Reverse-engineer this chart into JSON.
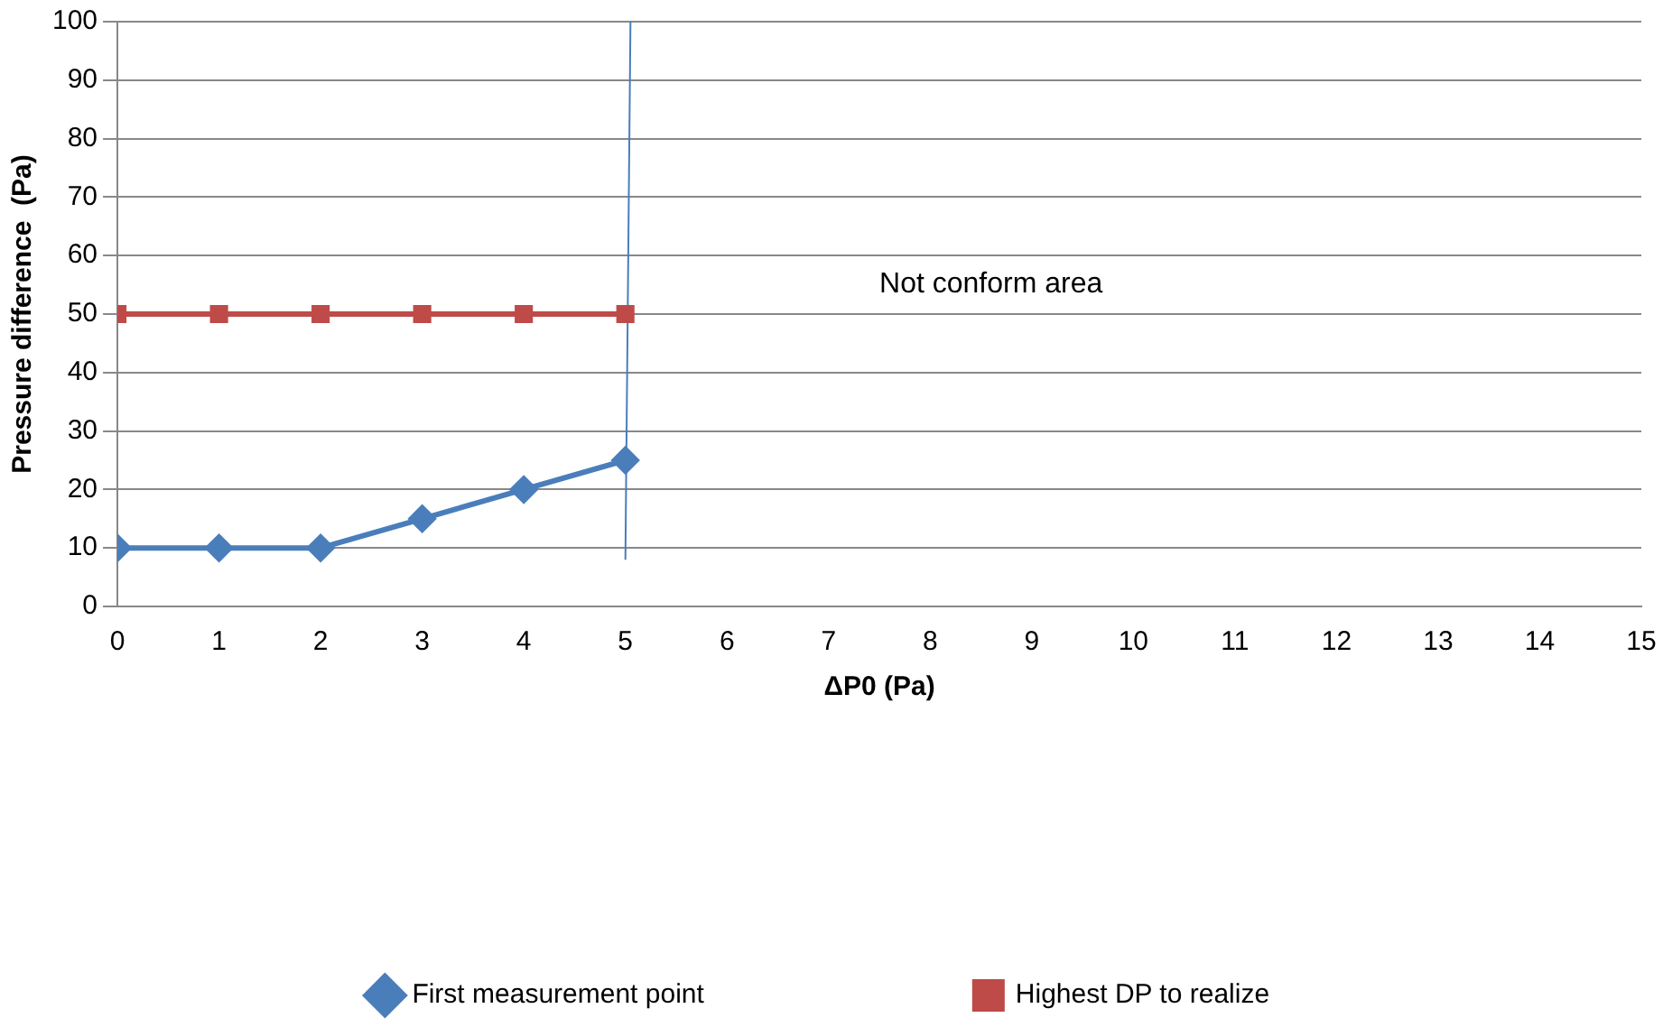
{
  "chart_data": {
    "type": "line",
    "xlabel": "ΔP0 (Pa)",
    "ylabel": "Pressure difference  (Pa)",
    "annotations": [
      "Not conform area"
    ],
    "series": [
      {
        "name": "First measurement point",
        "color": "#4a7ebb",
        "marker": "diamond",
        "x": [
          0,
          1,
          2,
          3,
          4,
          5
        ],
        "values": [
          10,
          10,
          10,
          15,
          20,
          25
        ]
      },
      {
        "name": "Highest DP to realize",
        "color": "#be4b48",
        "marker": "square",
        "x": [
          0,
          1,
          2,
          3,
          4,
          5
        ],
        "values": [
          50,
          50,
          50,
          50,
          50,
          50
        ]
      },
      {
        "color": "#4a7ebb",
        "marker": "none",
        "x": [
          5,
          5.05
        ],
        "values": [
          8,
          100
        ]
      }
    ],
    "xlim": [
      0,
      15
    ],
    "xticks": [
      0,
      1,
      2,
      3,
      4,
      5,
      6,
      7,
      8,
      9,
      10,
      11,
      12,
      13,
      14,
      15
    ],
    "ylim": [
      0,
      100
    ],
    "yticks": [
      0,
      10,
      20,
      30,
      40,
      50,
      60,
      70,
      80,
      90,
      100
    ],
    "grid": "y",
    "legend": "bottom",
    "line_style": "solid"
  }
}
